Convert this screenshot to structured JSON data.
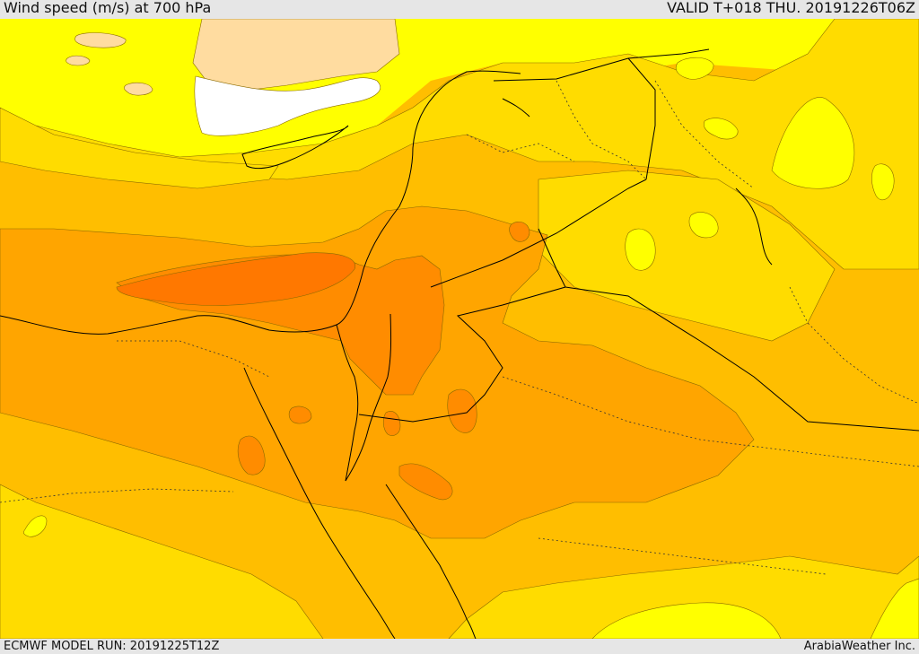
{
  "header": {
    "title": "Wind speed (m/s) at 700 hPa",
    "valid": "VALID T+018 THU. 20191226T06Z"
  },
  "footer": {
    "model_run": "ECMWF MODEL RUN: 20191225T12Z",
    "credit": "ArabiaWeather Inc."
  },
  "colors": {
    "white": "#ffffff",
    "peach": "#ffdca0",
    "yellow_bright": "#ffff00",
    "yellow": "#ffdc00",
    "gold": "#ffbe00",
    "orange_light": "#ffa500",
    "orange": "#ff8c00",
    "orange_dark": "#ff7800"
  }
}
